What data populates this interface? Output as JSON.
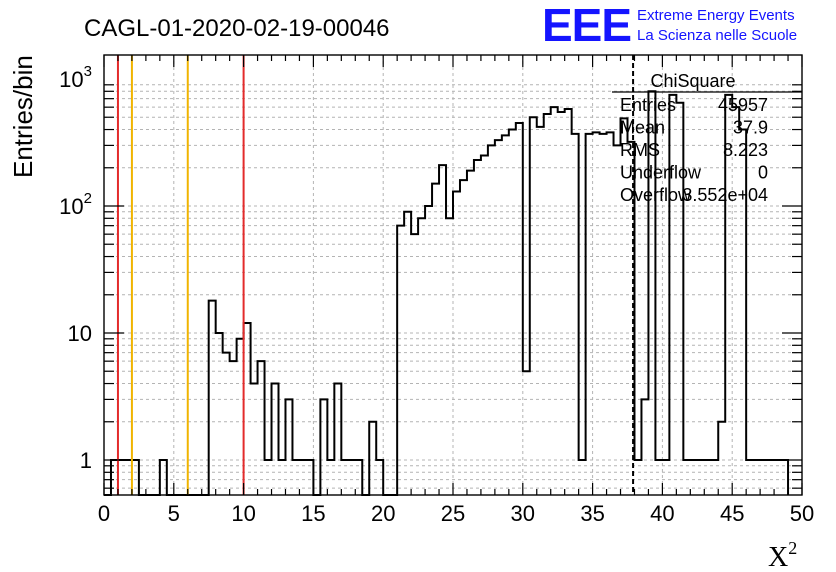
{
  "header": {
    "title": "CAGL-01-2020-02-19-00046",
    "logo_text": "EEE",
    "brand_line1": "Extreme Energy Events",
    "brand_line2": "La Scienza nelle Scuole"
  },
  "colors": {
    "red_cut": "#e32b2b",
    "yellow_cut": "#f0b400",
    "brand": "#1414ff",
    "histogram": "#000000",
    "grid": "#b4b4b4"
  },
  "chart_data": {
    "type": "histogram",
    "xlabel": "X",
    "xlabel_sup": "2",
    "ylabel": "Entries/bin",
    "xlim": [
      0,
      50
    ],
    "ylim": [
      0.5,
      1500
    ],
    "yscale": "log",
    "grid": true,
    "bin_width": 0.5,
    "x_ticks": [
      "0",
      "5",
      "10",
      "15",
      "20",
      "25",
      "30",
      "35",
      "40",
      "45",
      "50"
    ],
    "y_ticks": [
      {
        "value": 1,
        "label": "1"
      },
      {
        "value": 10,
        "label": "10"
      },
      {
        "value": 100,
        "label": "10",
        "sup": "2"
      },
      {
        "value": 1000,
        "label": "10",
        "sup": "3"
      }
    ],
    "counts": [
      0,
      1,
      1,
      1,
      1,
      0,
      0,
      0,
      1,
      0,
      0,
      0,
      0,
      0,
      0,
      18,
      10,
      7,
      6,
      9,
      12,
      4,
      6,
      1,
      4,
      1,
      3,
      1,
      1,
      1,
      0,
      3,
      1,
      4,
      1,
      1,
      1,
      0,
      2,
      1,
      0,
      0,
      70,
      90,
      60,
      80,
      100,
      150,
      210,
      80,
      130,
      160,
      190,
      230,
      250,
      300,
      330,
      360,
      400,
      450,
      5,
      500,
      420,
      530,
      600,
      550,
      580,
      370,
      1,
      370,
      380,
      370,
      380,
      300,
      490,
      320,
      1,
      3,
      800,
      1,
      1,
      750,
      650,
      1,
      1,
      1,
      1,
      1,
      2,
      750,
      600,
      400,
      1,
      1,
      1,
      1,
      1,
      1
    ],
    "vlines": [
      {
        "x": 1,
        "color": "red"
      },
      {
        "x": 2,
        "color": "yellow"
      },
      {
        "x": 6,
        "color": "yellow"
      },
      {
        "x": 10,
        "color": "red"
      },
      {
        "x": 37.9,
        "color": "black",
        "style": "dashed"
      }
    ],
    "stats_box": {
      "title": "ChiSquare",
      "rows": [
        {
          "label": "Entries",
          "value": "45957"
        },
        {
          "label": "Mean",
          "value": "37.9"
        },
        {
          "label": "RMS",
          "value": "8.223"
        },
        {
          "label": "Underflow",
          "value": "0"
        },
        {
          "label": "Overflow",
          "value": "3.552e+04"
        }
      ]
    }
  }
}
